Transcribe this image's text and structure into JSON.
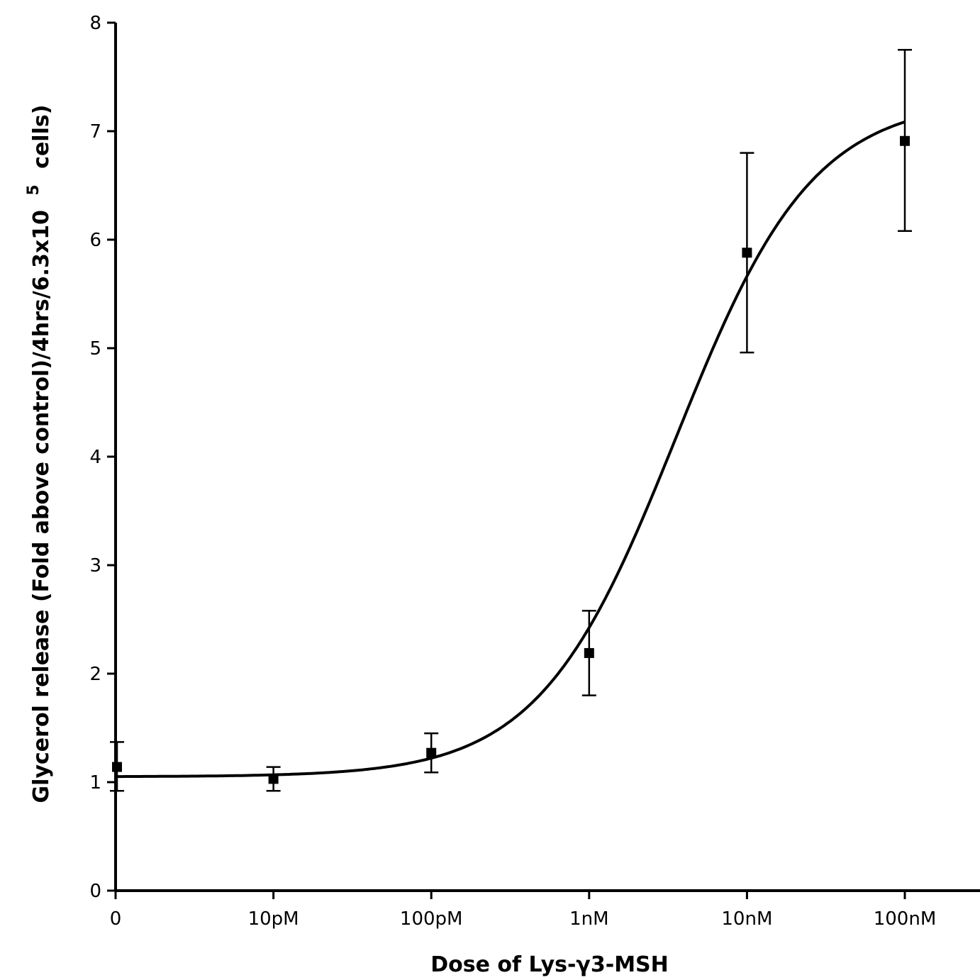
{
  "chart_data": {
    "type": "scatter",
    "title": "",
    "xlabel": "Dose of Lys-γ3-MSH",
    "ylabel": "Glycerol release (Fold above control)/4hrs/6.3x10 5 cells)",
    "ylabel_parts": {
      "main": "Glycerol release (Fold above control)/4hrs/6.3x10",
      "superscript": "5",
      "tail": "cells)"
    },
    "x_categories": [
      "0",
      "10pM",
      "100pM",
      "1nM",
      "10nM",
      "100nM"
    ],
    "ylim": [
      0,
      8
    ],
    "y_ticks": [
      "0",
      "1",
      "2",
      "3",
      "4",
      "5",
      "6",
      "7",
      "8"
    ],
    "grid": false,
    "legend": "none",
    "series": [
      {
        "points": [
          {
            "x": "0",
            "y": 1.14,
            "err_low": 0.22,
            "err_high": 0.23
          },
          {
            "x": "10pM",
            "y": 1.03,
            "err_low": 0.11,
            "err_high": 0.11
          },
          {
            "x": "100pM",
            "y": 1.27,
            "err_low": 0.18,
            "err_high": 0.18
          },
          {
            "x": "1nM",
            "y": 2.19,
            "err_low": 0.39,
            "err_high": 0.39
          },
          {
            "x": "10nM",
            "y": 5.88,
            "err_low": 0.92,
            "err_high": 0.92
          },
          {
            "x": "100nM",
            "y": 6.91,
            "err_low": 0.83,
            "err_high": 0.84
          }
        ]
      }
    ],
    "fit_curve": {
      "type": "sigmoidal dose-response",
      "bottom": 1.05,
      "top": 7.3,
      "midpoint_category_index": 3.55,
      "hill_slope": 1.0
    }
  }
}
